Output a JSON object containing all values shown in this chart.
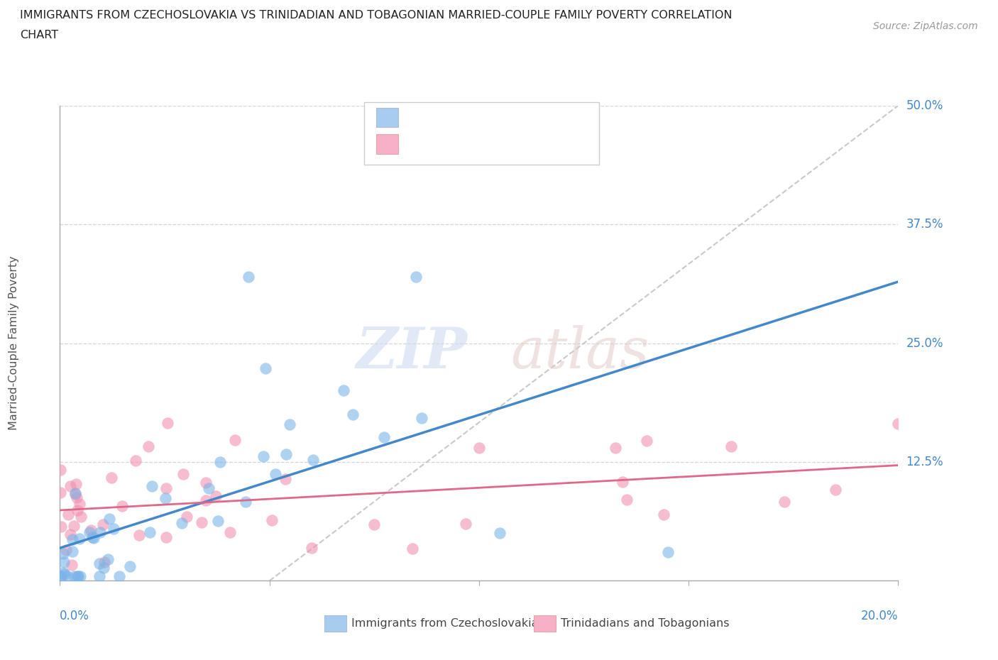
{
  "title_line1": "IMMIGRANTS FROM CZECHOSLOVAKIA VS TRINIDADIAN AND TOBAGONIAN MARRIED-COUPLE FAMILY POVERTY CORRELATION",
  "title_line2": "CHART",
  "source_text": "Source: ZipAtlas.com",
  "ylabel": "Married-Couple Family Poverty",
  "legend1_color": "#a8ccf0",
  "legend2_color": "#f8b0c8",
  "scatter_color_blue": "#7ab4e8",
  "scatter_color_pink": "#f090b0",
  "line_color_blue": "#4488cc",
  "line_color_pink": "#e06888",
  "line_color_diag": "#c0c0c0",
  "xlabel_label_blue": "Immigrants from Czechoslovakia",
  "xlabel_label_pink": "Trinidadians and Tobagonians",
  "xmin": 0.0,
  "xmax": 20.0,
  "ymin": 0.0,
  "ymax": 50.0,
  "ytick_vals": [
    0.0,
    12.5,
    25.0,
    37.5,
    50.0
  ],
  "ytick_labels": [
    "",
    "12.5%",
    "25.0%",
    "37.5%",
    "50.0%"
  ],
  "xtick_vals": [
    0,
    5,
    10,
    15,
    20
  ]
}
